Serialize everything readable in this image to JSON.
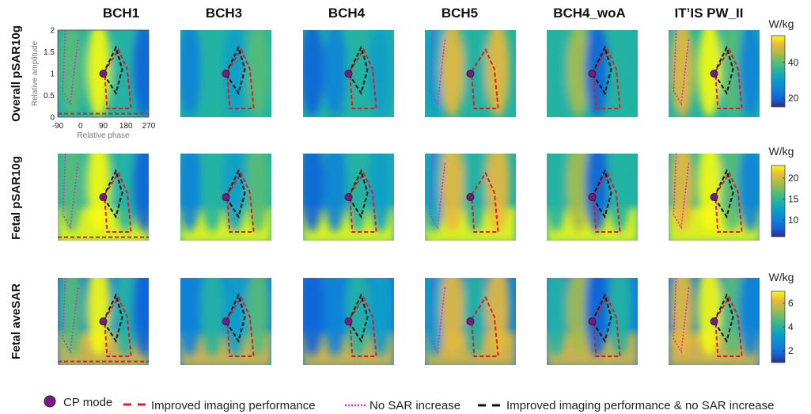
{
  "chart_data": {
    "type": "heatmap",
    "title": "",
    "columns": [
      "BCH1",
      "BCH3",
      "BCH4",
      "BCH5",
      "BCH4_woA",
      "IT’IS PW_II"
    ],
    "rows": [
      {
        "label": "Overall pSAR10g",
        "unit": "W/kg",
        "colorbar_ticks": [
          20,
          40
        ],
        "colorbar_range": [
          15,
          55
        ]
      },
      {
        "label": "Fetal pSAR10g",
        "unit": "W/kg",
        "colorbar_ticks": [
          10,
          15,
          20
        ],
        "colorbar_range": [
          6,
          23
        ]
      },
      {
        "label": "Fetal aveSAR",
        "unit": "W/kg",
        "colorbar_ticks": [
          2,
          4,
          6
        ],
        "colorbar_range": [
          1,
          7
        ]
      }
    ],
    "x_axis": {
      "label": "Relative phase",
      "ticks": [
        "-90",
        "0",
        "90",
        "180",
        "270"
      ],
      "range": [
        -90,
        270
      ]
    },
    "y_axis": {
      "label": "Relative amplitude",
      "ticks": [
        "0",
        "0.5",
        "1",
        "1.5",
        "2"
      ],
      "range": [
        0,
        2
      ]
    },
    "cp_mode": {
      "phase": 90,
      "amplitude": 1
    }
  },
  "legend": {
    "cp_mode": "CP mode",
    "improved": "Improved imaging performance",
    "no_sar": "No SAR increase",
    "both": "Improved imaging performance & no SAR increase"
  },
  "colors": {
    "cp_fill": "#7a1a8a",
    "improved": "#e8181c",
    "no_sar": "#d62bd6",
    "both": "#111111"
  }
}
